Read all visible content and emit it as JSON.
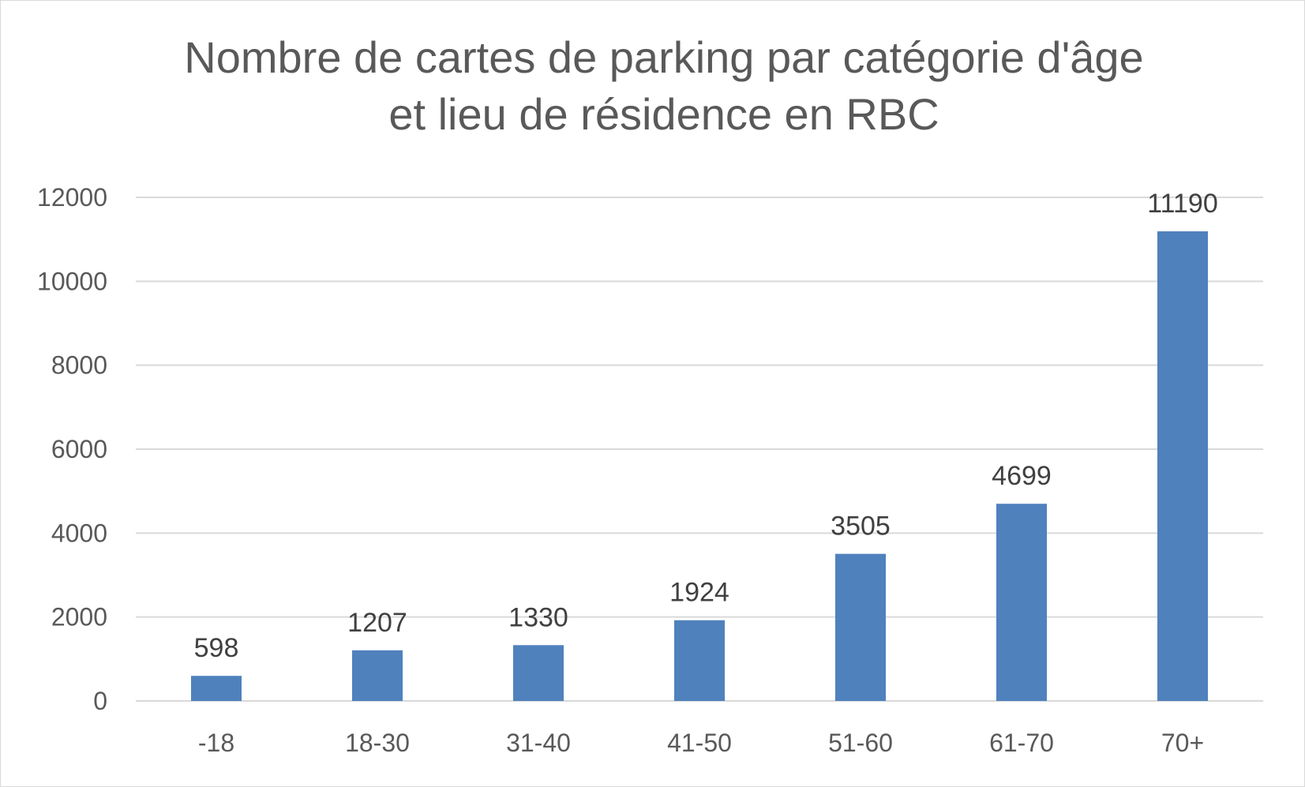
{
  "chart_data": {
    "type": "bar",
    "title": "Nombre de cartes de parking par catégorie d'âge et lieu de résidence en RBC",
    "title_lines": [
      "Nombre de cartes de parking par catégorie d'âge",
      "et lieu de résidence en RBC"
    ],
    "categories": [
      "-18",
      "18-30",
      "31-40",
      "41-50",
      "51-60",
      "61-70",
      "70+"
    ],
    "values": [
      598,
      1207,
      1330,
      1924,
      3505,
      4699,
      11190
    ],
    "yticks": [
      0,
      2000,
      4000,
      6000,
      8000,
      10000,
      12000
    ],
    "ylim": [
      0,
      12000
    ],
    "xlabel": "",
    "ylabel": "",
    "grid": true,
    "legend": "none",
    "bar_color": "#4f81bd",
    "grid_color": "#d9d9d9"
  }
}
